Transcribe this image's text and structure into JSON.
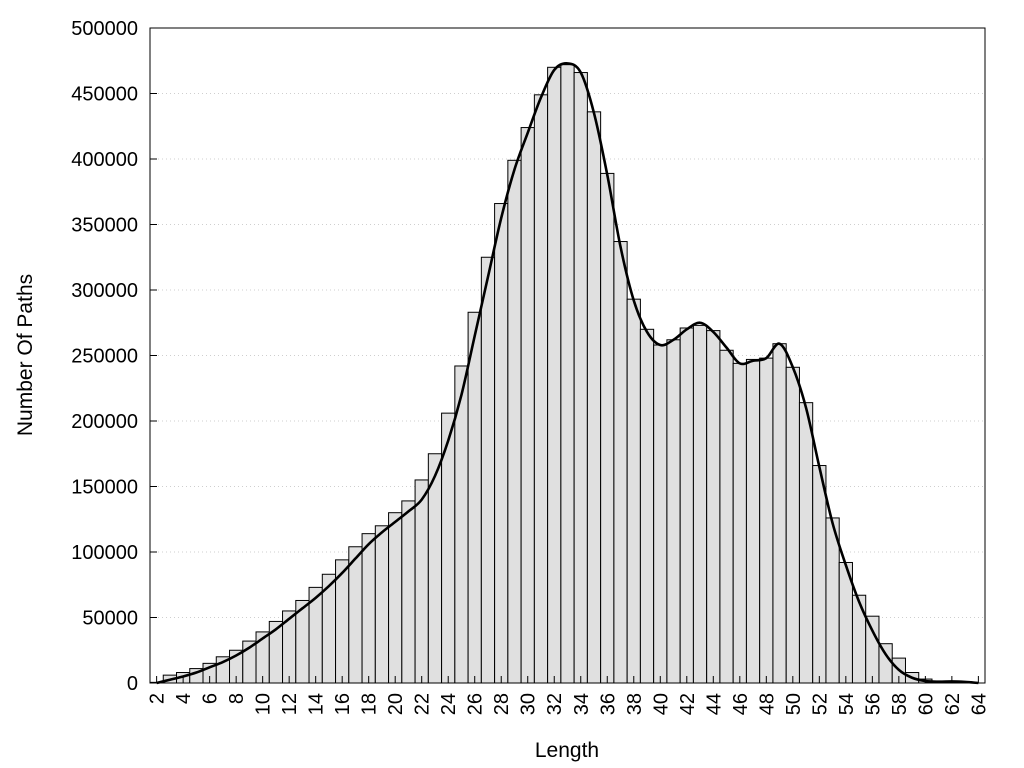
{
  "chart_data": {
    "type": "bar",
    "title": "",
    "xlabel": "Length",
    "ylabel": "Number Of Paths",
    "ylim": [
      0,
      500000
    ],
    "yticks": [
      0,
      50000,
      100000,
      150000,
      200000,
      250000,
      300000,
      350000,
      400000,
      450000,
      500000
    ],
    "ytick_labels": [
      "0",
      "50000",
      "100000",
      "150000",
      "200000",
      "250000",
      "300000",
      "350000",
      "400000",
      "450000",
      "500000"
    ],
    "xticks": [
      2,
      4,
      6,
      8,
      10,
      12,
      14,
      16,
      18,
      20,
      22,
      24,
      26,
      28,
      30,
      32,
      34,
      36,
      38,
      40,
      42,
      44,
      46,
      48,
      50,
      52,
      54,
      56,
      58,
      60,
      62,
      64
    ],
    "xtick_labels": [
      "2",
      "4",
      "6",
      "8",
      "10",
      "12",
      "14",
      "16",
      "18",
      "20",
      "22",
      "24",
      "26",
      "28",
      "30",
      "32",
      "34",
      "36",
      "38",
      "40",
      "42",
      "44",
      "46",
      "48",
      "50",
      "52",
      "54",
      "56",
      "58",
      "60",
      "62",
      "64"
    ],
    "xlim": [
      1.5,
      64.5
    ],
    "grid": true,
    "legend": "none",
    "categories": [
      2,
      3,
      4,
      5,
      6,
      7,
      8,
      9,
      10,
      11,
      12,
      13,
      14,
      15,
      16,
      17,
      18,
      19,
      20,
      21,
      22,
      23,
      24,
      25,
      26,
      27,
      28,
      29,
      30,
      31,
      32,
      33,
      34,
      35,
      36,
      37,
      38,
      39,
      40,
      41,
      42,
      43,
      44,
      45,
      46,
      47,
      48,
      49,
      50,
      51,
      52,
      53,
      54,
      55,
      56,
      57,
      58,
      59,
      60,
      61,
      62,
      63,
      64
    ],
    "values": [
      500,
      6000,
      8000,
      11000,
      15000,
      20000,
      25000,
      32000,
      39000,
      47000,
      55000,
      63000,
      73000,
      83000,
      94000,
      104000,
      114000,
      120000,
      130000,
      139000,
      155000,
      175000,
      206000,
      242000,
      283000,
      325000,
      366000,
      399000,
      424000,
      449000,
      470000,
      472000,
      466000,
      436000,
      389000,
      337000,
      293000,
      270000,
      258000,
      262000,
      271000,
      273000,
      269000,
      254000,
      244000,
      247000,
      248000,
      259000,
      241000,
      214000,
      166000,
      126000,
      92000,
      67000,
      51000,
      30000,
      19000,
      8000,
      3000,
      1000,
      1500,
      1000,
      0
    ],
    "curve": {
      "type": "line",
      "x": [
        2,
        3,
        4,
        5,
        6,
        7,
        8,
        9,
        10,
        11,
        12,
        13,
        14,
        15,
        16,
        17,
        18,
        19,
        20,
        21,
        22,
        23,
        24,
        25,
        26,
        27,
        28,
        29,
        30,
        31,
        32,
        33,
        34,
        35,
        36,
        37,
        38,
        39,
        40,
        41,
        42,
        43,
        44,
        45,
        46,
        47,
        48,
        49,
        50,
        51,
        52,
        53,
        54,
        55,
        56,
        57,
        58,
        59,
        60,
        61,
        62,
        63,
        64
      ],
      "y": [
        0,
        2500,
        5000,
        8000,
        12000,
        16000,
        21000,
        27000,
        34000,
        41000,
        49000,
        57000,
        65000,
        74000,
        84000,
        95000,
        106000,
        115000,
        123000,
        131000,
        140000,
        158000,
        185000,
        220000,
        265000,
        310000,
        355000,
        392000,
        420000,
        447000,
        468000,
        473000,
        466000,
        435000,
        388000,
        333000,
        292000,
        268000,
        258000,
        262000,
        270000,
        275000,
        268000,
        256000,
        244000,
        246000,
        248000,
        259000,
        241000,
        210000,
        165000,
        122000,
        90000,
        62000,
        40000,
        22000,
        10000,
        4000,
        1500,
        1000,
        1200,
        800,
        0
      ]
    }
  }
}
